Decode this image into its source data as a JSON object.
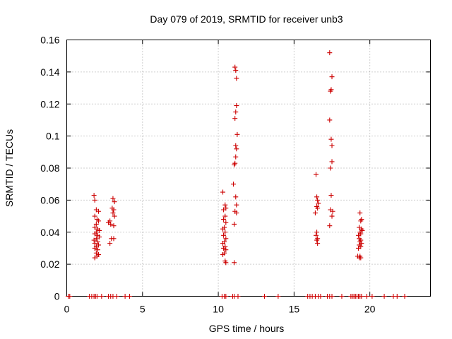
{
  "chart_data": {
    "type": "scatter",
    "title": "Day 079 of 2019, SRMTID for receiver unb3",
    "xlabel": "GPS time / hours",
    "ylabel": "SRMTID / TECUs",
    "xlim": [
      0,
      24
    ],
    "ylim": [
      0,
      0.16
    ],
    "x_ticks": [
      0,
      5,
      10,
      15,
      20
    ],
    "x_tick_labels": [
      "0",
      "5",
      "10",
      "15",
      "20"
    ],
    "y_ticks": [
      0,
      0.02,
      0.04,
      0.06,
      0.08,
      0.1,
      0.12,
      0.14,
      0.16
    ],
    "y_tick_labels": [
      "0",
      "0.02",
      "0.04",
      "0.06",
      "0.08",
      "0.1",
      "0.12",
      "0.14",
      "0.16"
    ],
    "grid": true,
    "marker": "+",
    "color": "#cc0000",
    "series": [
      {
        "name": "SRMTID",
        "points": [
          [
            0.1,
            0
          ],
          [
            0.2,
            0
          ],
          [
            1.5,
            0
          ],
          [
            1.65,
            0
          ],
          [
            1.8,
            0
          ],
          [
            1.9,
            0
          ],
          [
            2.0,
            0
          ],
          [
            2.3,
            0
          ],
          [
            2.75,
            0
          ],
          [
            2.9,
            0
          ],
          [
            3.05,
            0
          ],
          [
            3.3,
            0
          ],
          [
            3.85,
            0
          ],
          [
            4.15,
            0
          ],
          [
            10.25,
            0
          ],
          [
            10.4,
            0
          ],
          [
            10.5,
            0
          ],
          [
            10.95,
            0
          ],
          [
            11.05,
            0
          ],
          [
            11.3,
            0
          ],
          [
            13.05,
            0
          ],
          [
            13.95,
            0
          ],
          [
            15.9,
            0
          ],
          [
            16.05,
            0
          ],
          [
            16.2,
            0
          ],
          [
            16.4,
            0
          ],
          [
            16.6,
            0
          ],
          [
            16.75,
            0
          ],
          [
            17.2,
            0
          ],
          [
            17.35,
            0
          ],
          [
            17.5,
            0
          ],
          [
            18.15,
            0
          ],
          [
            18.75,
            0
          ],
          [
            18.85,
            0
          ],
          [
            18.95,
            0
          ],
          [
            19.05,
            0
          ],
          [
            19.15,
            0
          ],
          [
            19.25,
            0
          ],
          [
            19.35,
            0
          ],
          [
            19.45,
            0
          ],
          [
            19.8,
            0
          ],
          [
            20.15,
            0
          ],
          [
            20.95,
            0
          ],
          [
            21.55,
            0
          ],
          [
            21.8,
            0
          ],
          [
            22.3,
            0
          ],
          [
            1.8,
            0.063
          ],
          [
            1.85,
            0.06
          ],
          [
            1.95,
            0.054
          ],
          [
            2.1,
            0.053
          ],
          [
            1.85,
            0.05
          ],
          [
            2.0,
            0.048
          ],
          [
            2.1,
            0.047
          ],
          [
            1.95,
            0.045
          ],
          [
            1.85,
            0.043
          ],
          [
            2.05,
            0.042
          ],
          [
            2.15,
            0.041
          ],
          [
            1.95,
            0.04
          ],
          [
            1.85,
            0.039
          ],
          [
            2.05,
            0.038
          ],
          [
            2.15,
            0.037
          ],
          [
            1.95,
            0.036
          ],
          [
            1.8,
            0.035
          ],
          [
            2.05,
            0.034
          ],
          [
            1.85,
            0.033
          ],
          [
            2.1,
            0.032
          ],
          [
            1.95,
            0.031
          ],
          [
            1.85,
            0.03
          ],
          [
            2.05,
            0.029
          ],
          [
            1.95,
            0.027
          ],
          [
            2.1,
            0.026
          ],
          [
            1.85,
            0.024
          ],
          [
            2.0,
            0.025
          ],
          [
            3.05,
            0.061
          ],
          [
            3.15,
            0.059
          ],
          [
            3.0,
            0.055
          ],
          [
            3.1,
            0.054
          ],
          [
            3.05,
            0.052
          ],
          [
            3.15,
            0.05
          ],
          [
            2.85,
            0.047
          ],
          [
            2.75,
            0.046
          ],
          [
            2.9,
            0.045
          ],
          [
            3.1,
            0.044
          ],
          [
            2.95,
            0.036
          ],
          [
            3.1,
            0.036
          ],
          [
            2.85,
            0.033
          ],
          [
            10.3,
            0.065
          ],
          [
            10.45,
            0.057
          ],
          [
            10.5,
            0.055
          ],
          [
            10.35,
            0.054
          ],
          [
            10.45,
            0.05
          ],
          [
            10.35,
            0.048
          ],
          [
            10.5,
            0.046
          ],
          [
            10.4,
            0.043
          ],
          [
            10.3,
            0.042
          ],
          [
            10.45,
            0.04
          ],
          [
            10.35,
            0.038
          ],
          [
            10.5,
            0.036
          ],
          [
            10.4,
            0.034
          ],
          [
            10.3,
            0.033
          ],
          [
            10.45,
            0.031
          ],
          [
            10.35,
            0.03
          ],
          [
            10.5,
            0.029
          ],
          [
            10.4,
            0.027
          ],
          [
            10.3,
            0.026
          ],
          [
            10.45,
            0.022
          ],
          [
            10.5,
            0.021
          ],
          [
            11.1,
            0.143
          ],
          [
            11.15,
            0.141
          ],
          [
            11.2,
            0.136
          ],
          [
            11.2,
            0.119
          ],
          [
            11.15,
            0.115
          ],
          [
            11.1,
            0.111
          ],
          [
            11.25,
            0.101
          ],
          [
            11.15,
            0.094
          ],
          [
            11.2,
            0.092
          ],
          [
            11.15,
            0.087
          ],
          [
            11.1,
            0.083
          ],
          [
            11.05,
            0.082
          ],
          [
            11.0,
            0.07
          ],
          [
            11.15,
            0.062
          ],
          [
            11.2,
            0.057
          ],
          [
            11.1,
            0.053
          ],
          [
            11.2,
            0.052
          ],
          [
            11.05,
            0.045
          ],
          [
            11.05,
            0.021
          ],
          [
            16.45,
            0.076
          ],
          [
            16.5,
            0.062
          ],
          [
            16.55,
            0.06
          ],
          [
            16.6,
            0.058
          ],
          [
            16.5,
            0.056
          ],
          [
            16.55,
            0.055
          ],
          [
            16.4,
            0.052
          ],
          [
            16.5,
            0.04
          ],
          [
            16.45,
            0.038
          ],
          [
            16.55,
            0.036
          ],
          [
            16.5,
            0.035
          ],
          [
            16.55,
            0.033
          ],
          [
            17.35,
            0.152
          ],
          [
            17.5,
            0.137
          ],
          [
            17.45,
            0.129
          ],
          [
            17.4,
            0.128
          ],
          [
            17.35,
            0.11
          ],
          [
            17.45,
            0.098
          ],
          [
            17.5,
            0.094
          ],
          [
            17.5,
            0.084
          ],
          [
            17.4,
            0.08
          ],
          [
            17.45,
            0.063
          ],
          [
            17.4,
            0.054
          ],
          [
            17.55,
            0.053
          ],
          [
            17.5,
            0.05
          ],
          [
            17.35,
            0.044
          ],
          [
            19.35,
            0.052
          ],
          [
            19.45,
            0.048
          ],
          [
            19.4,
            0.047
          ],
          [
            19.3,
            0.043
          ],
          [
            19.45,
            0.042
          ],
          [
            19.5,
            0.041
          ],
          [
            19.35,
            0.04
          ],
          [
            19.4,
            0.039
          ],
          [
            19.25,
            0.038
          ],
          [
            19.3,
            0.036
          ],
          [
            19.4,
            0.035
          ],
          [
            19.35,
            0.034
          ],
          [
            19.45,
            0.033
          ],
          [
            19.3,
            0.032
          ],
          [
            19.4,
            0.031
          ],
          [
            19.25,
            0.03
          ],
          [
            19.35,
            0.025
          ],
          [
            19.2,
            0.025
          ],
          [
            19.4,
            0.024
          ],
          [
            19.3,
            0.024
          ]
        ]
      }
    ]
  }
}
